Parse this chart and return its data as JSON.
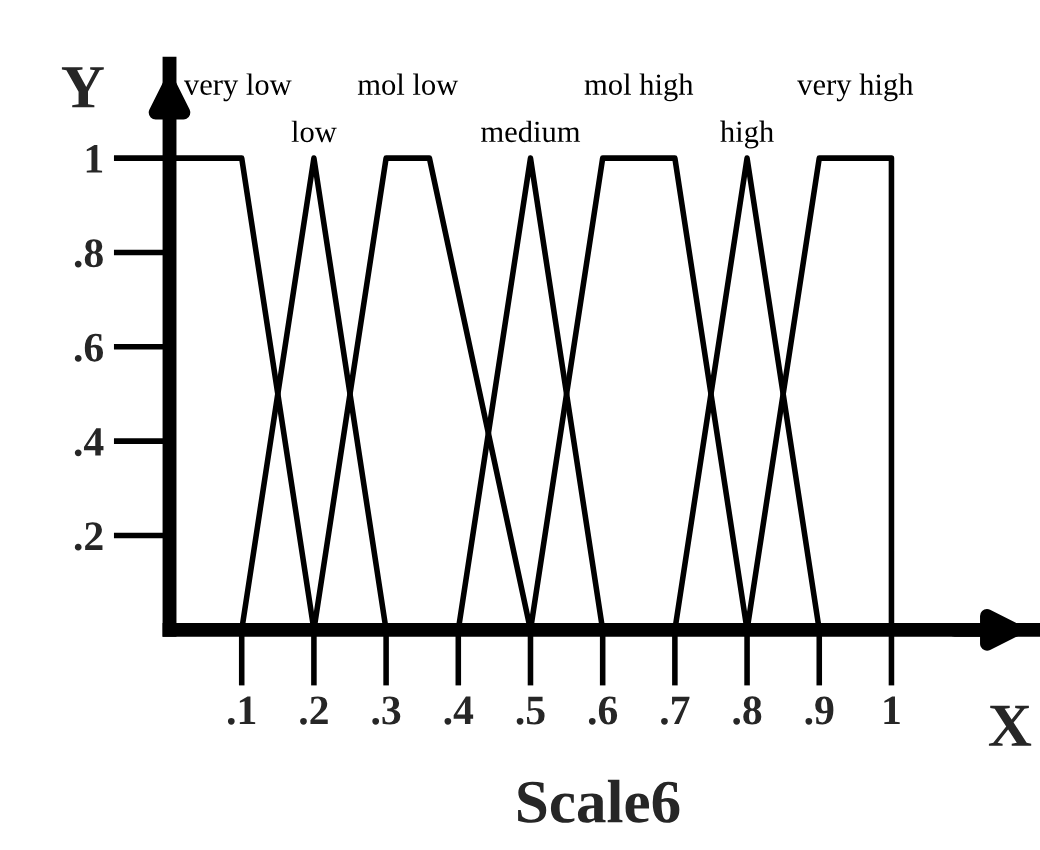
{
  "chart_data": {
    "type": "line",
    "title": "Scale6",
    "xlabel": "X",
    "ylabel": "Y",
    "series": [
      {
        "name": "very low",
        "color": "#000000",
        "x": [
          0,
          0.1,
          0.2
        ],
        "values": [
          1,
          1,
          0
        ]
      },
      {
        "name": "low",
        "color": "#000000",
        "x": [
          0.1,
          0.2,
          0.3
        ],
        "values": [
          0,
          1,
          0
        ]
      },
      {
        "name": "mol low",
        "color": "#000000",
        "x": [
          0.2,
          0.3,
          0.36,
          0.5
        ],
        "values": [
          0,
          1,
          1,
          0
        ]
      },
      {
        "name": "medium",
        "color": "#000000",
        "x": [
          0.4,
          0.5,
          0.6
        ],
        "values": [
          0,
          1,
          0
        ]
      },
      {
        "name": "mol high",
        "color": "#000000",
        "x": [
          0.5,
          0.6,
          0.7,
          0.8
        ],
        "values": [
          0,
          1,
          1,
          0
        ]
      },
      {
        "name": "high",
        "color": "#000000",
        "x": [
          0.7,
          0.8,
          0.9
        ],
        "values": [
          0,
          1,
          0
        ]
      },
      {
        "name": "very high",
        "color": "#000000",
        "x": [
          0.8,
          0.9,
          1,
          1
        ],
        "values": [
          0,
          1,
          1,
          0
        ]
      }
    ],
    "xlim": [
      0,
      1.2
    ],
    "ylim": [
      0,
      1.2
    ],
    "xticks": [
      {
        "value": 0.1,
        "label": ".1"
      },
      {
        "value": 0.2,
        "label": ".2"
      },
      {
        "value": 0.3,
        "label": ".3"
      },
      {
        "value": 0.4,
        "label": ".4"
      },
      {
        "value": 0.5,
        "label": ".5"
      },
      {
        "value": 0.6,
        "label": ".6"
      },
      {
        "value": 0.7,
        "label": ".7"
      },
      {
        "value": 0.8,
        "label": ".8"
      },
      {
        "value": 0.9,
        "label": ".9"
      },
      1
    ],
    "yticks": [
      {
        "value": 0.2,
        "label": ".2"
      },
      {
        "value": 0.4,
        "label": ".4"
      },
      {
        "value": 0.6,
        "label": ".6"
      },
      {
        "value": 0.8,
        "label": ".8"
      },
      1
    ],
    "grid": false,
    "marker": "none",
    "line_style": "solid"
  }
}
